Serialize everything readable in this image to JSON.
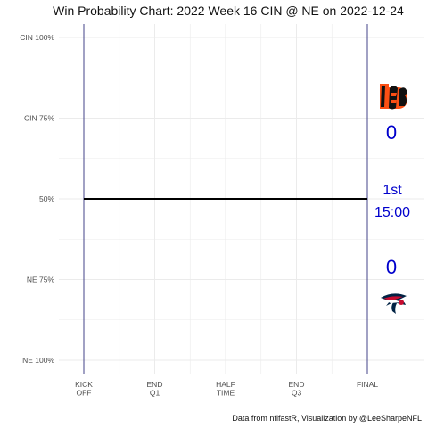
{
  "chart_data": {
    "type": "line",
    "title": "Win Probability Chart: 2022 Week 16 CIN @ NE on 2022-12-24",
    "caption": "Data from nflfastR, Visualization by @LeeSharpeNFL",
    "y_ticks": [
      {
        "value": 0,
        "label": "NE 100%"
      },
      {
        "value": 25,
        "label": "NE 75%"
      },
      {
        "value": 50,
        "label": "50%"
      },
      {
        "value": 75,
        "label": "CIN 75%"
      },
      {
        "value": 100,
        "label": "CIN 100%"
      }
    ],
    "x_ticks": [
      {
        "value": 0,
        "label": [
          "KICK",
          "OFF"
        ]
      },
      {
        "value": 900,
        "label": [
          "END",
          "Q1"
        ]
      },
      {
        "value": 1800,
        "label": [
          "HALF",
          "TIME"
        ]
      },
      {
        "value": 2700,
        "label": [
          "END",
          "Q3"
        ]
      },
      {
        "value": 3600,
        "label": [
          "FINAL"
        ]
      }
    ],
    "xlim": [
      0,
      3600
    ],
    "ylim": [
      0,
      100
    ],
    "grid": true,
    "series": [
      {
        "x": [
          0,
          3600
        ],
        "y": [
          50,
          50
        ]
      }
    ],
    "vlines": [
      0,
      3600
    ],
    "away": {
      "team": "CIN",
      "score": "0",
      "logo": "bengals-logo"
    },
    "home": {
      "team": "NE",
      "score": "0",
      "logo": "patriots-logo"
    },
    "clock": {
      "quarter": "1st",
      "time": "15:00"
    },
    "colors": {
      "line": "#000000",
      "vline": "#191970",
      "grid": "#ebebeb",
      "score": "#0000cc",
      "bengals_orange": "#fb4f14",
      "patriots_navy": "#002244",
      "patriots_red": "#c60c30"
    }
  }
}
